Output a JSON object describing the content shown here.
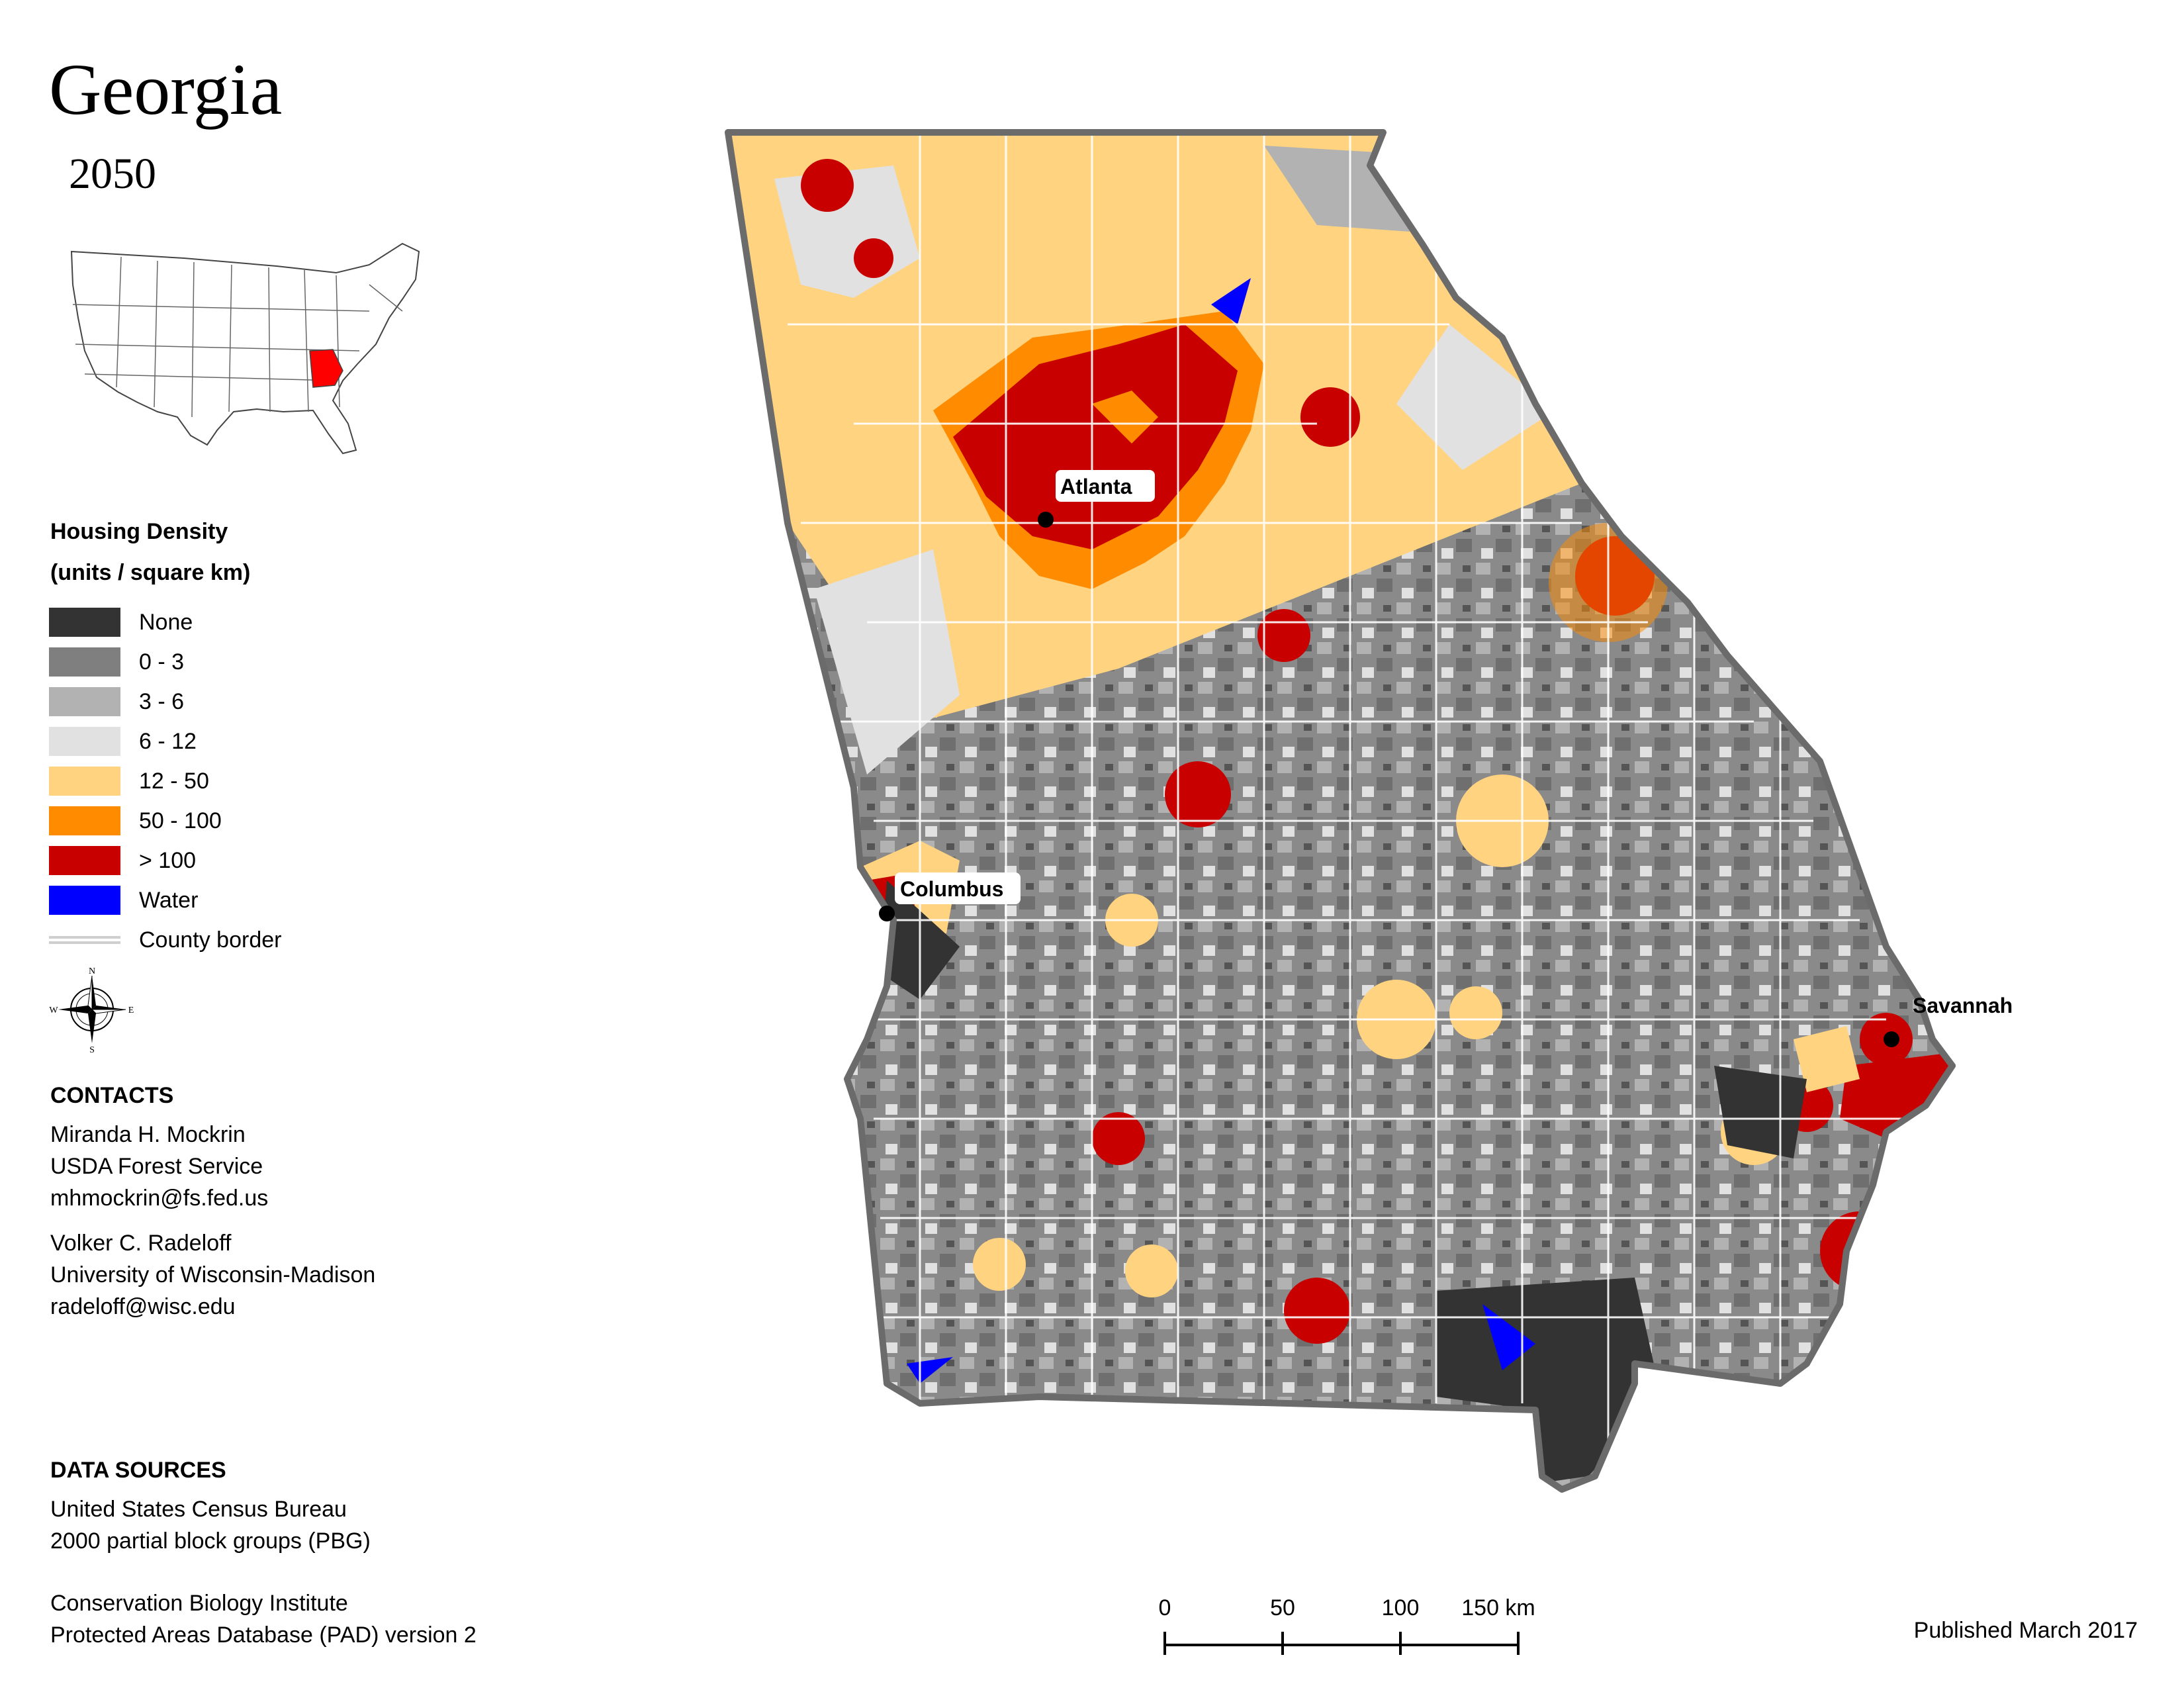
{
  "title": "Georgia",
  "subtitle": "2050",
  "legend": {
    "title": "Housing Density",
    "units": "(units / square km)",
    "items": [
      {
        "label": "None",
        "color": "#333333"
      },
      {
        "label": "0 - 3",
        "color": "#7f7f7f"
      },
      {
        "label": "3 - 6",
        "color": "#b2b2b2"
      },
      {
        "label": "6 - 12",
        "color": "#e1e1e1"
      },
      {
        "label": "12 - 50",
        "color": "#ffd37f"
      },
      {
        "label": "50 - 100",
        "color": "#ff8c00"
      },
      {
        "label": "> 100",
        "color": "#c80000"
      },
      {
        "label": "Water",
        "color": "#0000ff"
      }
    ],
    "border_label": "County border"
  },
  "compass": {
    "n": "N",
    "s": "S",
    "e": "E",
    "w": "W"
  },
  "contacts": {
    "heading": "CONTACTS",
    "people": [
      {
        "name": "Miranda H. Mockrin",
        "org": "USDA Forest Service",
        "email": "mhmockrin@fs.fed.us"
      },
      {
        "name": "Volker C. Radeloff",
        "org": "University of Wisconsin-Madison",
        "email": "radeloff@wisc.edu"
      }
    ]
  },
  "data_sources": {
    "heading": "DATA SOURCES",
    "lines": [
      "United States Census Bureau",
      "2000 partial block groups (PBG)",
      "Conservation Biology Institute",
      "Protected Areas Database (PAD) version 2"
    ]
  },
  "cities": [
    {
      "name": "Atlanta"
    },
    {
      "name": "Columbus"
    },
    {
      "name": "Savannah"
    }
  ],
  "scale": {
    "labels": [
      "0",
      "50",
      "100",
      "150 km"
    ]
  },
  "published": "Published March 2017"
}
